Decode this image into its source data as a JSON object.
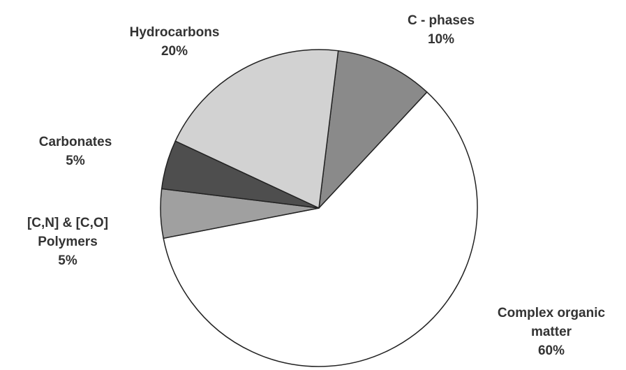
{
  "chart_data": {
    "type": "pie",
    "categories": [
      "C - phases",
      "Complex organic matter",
      "[C,N] & [C,O] Polymers",
      "Carbonates",
      "Hydrocarbons"
    ],
    "values": [
      10,
      60,
      5,
      5,
      20
    ],
    "value_labels": [
      "10%",
      "60%",
      "5%",
      "5%",
      "20%"
    ],
    "colors": [
      "#8a8a8a",
      "#ffffff",
      "#a0a0a0",
      "#4e4e4e",
      "#d2d2d2"
    ]
  }
}
